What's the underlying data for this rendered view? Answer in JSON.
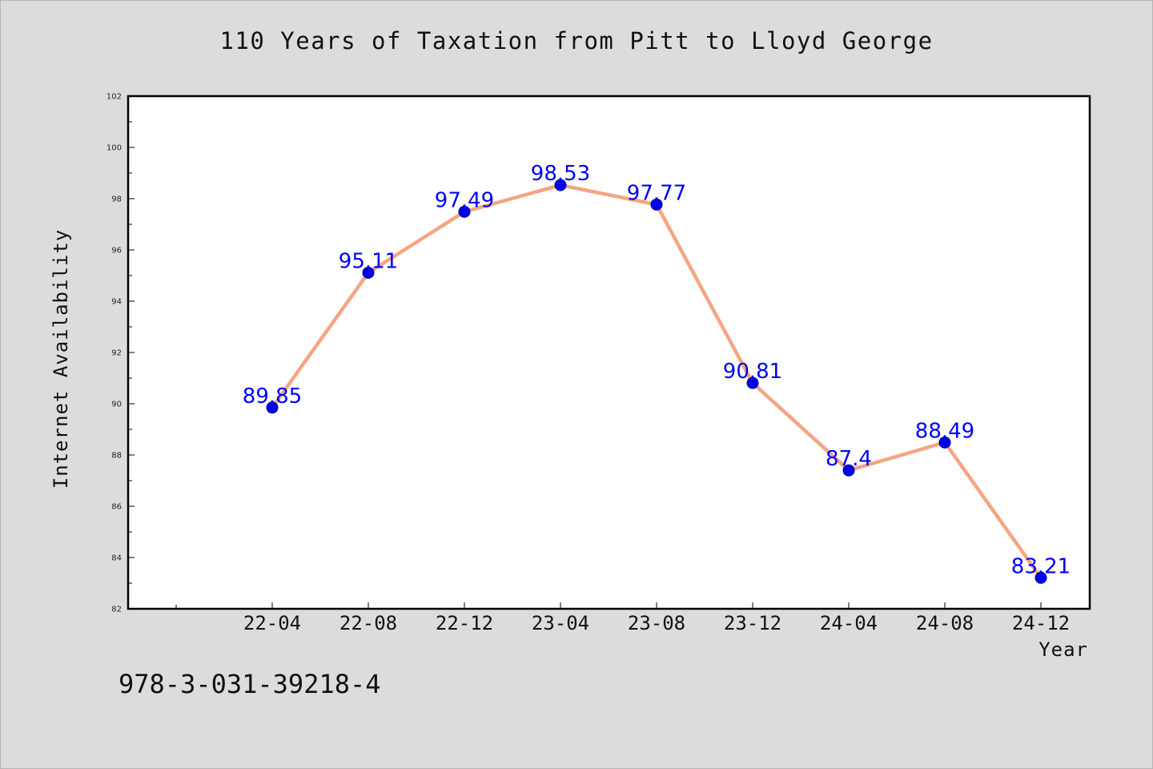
{
  "chart_data": {
    "type": "line",
    "title": "110 Years of Taxation from Pitt to Lloyd George",
    "xlabel": "Year",
    "ylabel": "Internet Availability",
    "categories": [
      "22-04",
      "22-08",
      "22-12",
      "23-04",
      "23-08",
      "23-12",
      "24-04",
      "24-08",
      "24-12"
    ],
    "series": [
      {
        "values": [
          89.85,
          95.11,
          97.49,
          98.53,
          97.77,
          90.81,
          87.4,
          88.49,
          83.21
        ]
      }
    ],
    "data_labels": [
      "89.85",
      "95.11",
      "97.49",
      "98.53",
      "97.77",
      "90.81",
      "87.4",
      "88.49",
      "83.21"
    ],
    "ylim": [
      82,
      102
    ],
    "yticks": [
      82,
      84,
      86,
      88,
      90,
      92,
      94,
      96,
      98,
      100,
      102
    ],
    "grid": false,
    "legend": "none",
    "colors": {
      "line": "#f4a582",
      "marker": "#0000ee",
      "label": "#0000ff",
      "background": "#dcdcdc",
      "plot_background": "#ffffff"
    }
  },
  "footnote": "978-3-031-39218-4"
}
